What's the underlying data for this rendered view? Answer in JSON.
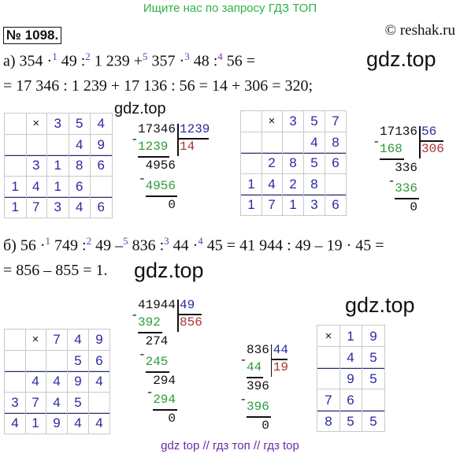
{
  "header": {
    "banner": "Ищите нас по запросу ГДЗ ТОП",
    "number": "№ 1098.",
    "site": "© reshak.ru"
  },
  "watermarks": [
    "gdz.top",
    "gdz.top",
    "gdz.top",
    "gdz.top"
  ],
  "part_a": {
    "lines": [
      [
        {
          "text": "а) 354 ·"
        },
        {
          "sup": "1"
        },
        {
          "text": " 49 :"
        },
        {
          "sup": "2"
        },
        {
          "text": " 1 239 +"
        },
        {
          "sup": "5"
        },
        {
          "text": " 357 ·"
        },
        {
          "sup": "3"
        },
        {
          "text": " 48 :"
        },
        {
          "sup": "4"
        },
        {
          "text": " 56 ="
        }
      ],
      [
        {
          "text": "= 17 346 : 1 239 + 17 136 : 56 = 14 + 306 = 320;"
        }
      ]
    ],
    "grids": [
      {
        "rows": [
          [
            null,
            "×",
            "3",
            "5",
            "4"
          ],
          [
            null,
            null,
            null,
            "4",
            "9"
          ],
          [
            null,
            "3",
            "1",
            "8",
            "6"
          ],
          [
            "1",
            "4",
            "1",
            "6",
            null
          ],
          [
            "1",
            "7",
            "3",
            "4",
            "6"
          ]
        ]
      },
      {
        "rows": [
          [
            null,
            "×",
            "3",
            "5",
            "7"
          ],
          [
            null,
            null,
            null,
            "4",
            "8"
          ],
          [
            null,
            "2",
            "8",
            "5",
            "6"
          ],
          [
            "1",
            "4",
            "2",
            "8",
            null
          ],
          [
            "1",
            "7",
            "1",
            "3",
            "6"
          ]
        ]
      }
    ],
    "divisions": [
      {
        "dividend": "17346",
        "divisor": "1239",
        "quotient": "14",
        "sign": "-",
        "steps": [
          {
            "subtract": "1239",
            "remainder": "4956"
          },
          {
            "subtract": "4956",
            "remainder": "0"
          }
        ]
      },
      {
        "dividend": "17136",
        "divisor": "56",
        "quotient": "306",
        "sign": "-",
        "steps": [
          {
            "subtract": "168",
            "remainder": "336"
          },
          {
            "subtract": "336",
            "remainder": "0"
          }
        ]
      }
    ]
  },
  "part_b": {
    "lines": [
      [
        {
          "text": "б) 56 ·"
        },
        {
          "sup": "1"
        },
        {
          "text": " 749 :"
        },
        {
          "sup": "2"
        },
        {
          "text": " 49 –"
        },
        {
          "sup": "5"
        },
        {
          "text": " 836 :"
        },
        {
          "sup": "3"
        },
        {
          "text": " 44 ·"
        },
        {
          "sup": "4"
        },
        {
          "text": " 45 = 41 944 : 49 – 19 · 45 ="
        }
      ],
      [
        {
          "text": "= 856 – 855 = 1."
        }
      ]
    ],
    "grids": [
      {
        "rows": [
          [
            null,
            "×",
            "7",
            "4",
            "9"
          ],
          [
            null,
            null,
            null,
            "5",
            "6"
          ],
          [
            null,
            "4",
            "4",
            "9",
            "4"
          ],
          [
            "3",
            "7",
            "4",
            "5",
            null
          ],
          [
            "4",
            "1",
            "9",
            "4",
            "4"
          ]
        ]
      },
      {
        "rows": [
          [
            "×",
            "1",
            "9"
          ],
          [
            null,
            "4",
            "5"
          ],
          [
            null,
            "9",
            "5"
          ],
          [
            "7",
            "6",
            null
          ],
          [
            "8",
            "5",
            "5"
          ]
        ]
      }
    ],
    "divisions": [
      {
        "dividend": "41944",
        "divisor": "49",
        "quotient": "856",
        "sign": "-",
        "steps": [
          {
            "subtract": "392",
            "remainder": "274"
          },
          {
            "subtract": "245",
            "remainder": "294"
          },
          {
            "subtract": "294",
            "remainder": "0"
          }
        ]
      },
      {
        "dividend": "836",
        "divisor": "44",
        "quotient": "19",
        "sign": "-",
        "steps": [
          {
            "subtract": "44",
            "remainder": "396"
          },
          {
            "subtract": "396",
            "remainder": "0"
          }
        ]
      }
    ]
  },
  "footer": "gdz top // гдз топ // гдз top"
}
